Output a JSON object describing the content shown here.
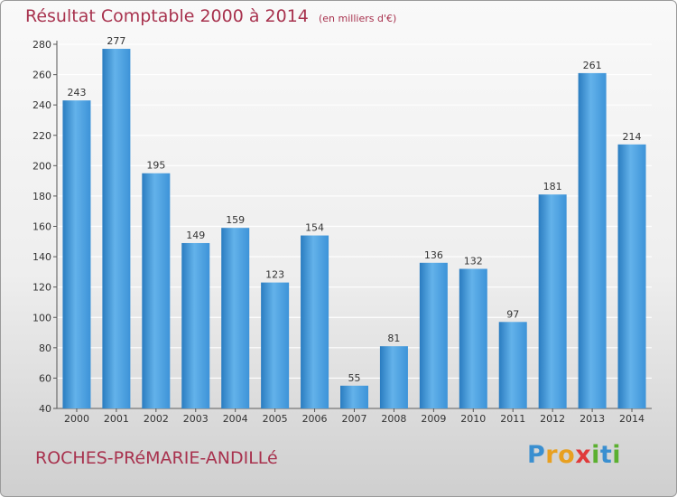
{
  "title": "Résultat Comptable 2000 à 2014",
  "subtitle": "(en milliers d'€)",
  "commune": "ROCHES-PRéMARIE-ANDILLé",
  "logo": {
    "letters": [
      "P",
      "r",
      "o",
      "x",
      "i",
      "t",
      "i"
    ],
    "colors": [
      "#3a8fd0",
      "#e8a020",
      "#e8a020",
      "#e03a3a",
      "#5bb030",
      "#3a8fd0",
      "#5bb030"
    ]
  },
  "colors": {
    "bar": "#3d93d8",
    "bar_light": "#63b2ea",
    "bar_dark": "#2a7cc0",
    "grid": "#ffffff",
    "title": "#a8324e"
  },
  "chart_data": {
    "type": "bar",
    "title": "Résultat Comptable 2000 à 2014",
    "ylabel": "en milliers d'€",
    "xlabel": "",
    "categories": [
      "2000",
      "2001",
      "2002",
      "2003",
      "2004",
      "2005",
      "2006",
      "2007",
      "2008",
      "2009",
      "2010",
      "2011",
      "2012",
      "2013",
      "2014"
    ],
    "values": [
      243,
      277,
      195,
      149,
      159,
      123,
      154,
      55,
      81,
      136,
      132,
      97,
      181,
      261,
      214
    ],
    "ylim": [
      40,
      280
    ],
    "yticks": [
      40,
      60,
      80,
      100,
      120,
      140,
      160,
      180,
      200,
      220,
      240,
      260,
      280
    ],
    "grid": true
  }
}
